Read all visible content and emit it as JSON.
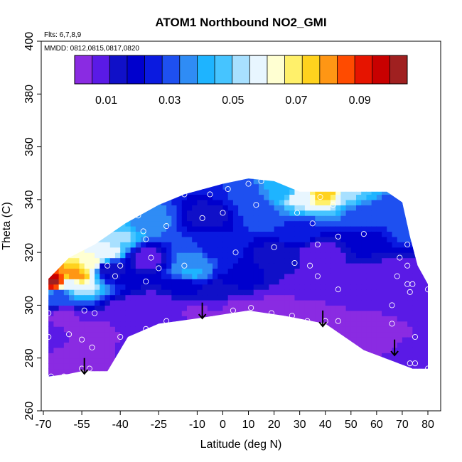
{
  "chart_data": {
    "type": "heatmap",
    "title": "ATOM1 Northbound NO2_GMI",
    "xlabel": "Latitude (deg N)",
    "ylabel": "Theta (C)",
    "annotations": [
      "Flts: 6,7,8,9",
      "MMDD: 0812,0815,0817,0820"
    ],
    "xlim": [
      -70,
      80
    ],
    "ylim": [
      260,
      400
    ],
    "x_ticks": [
      -70,
      -55,
      -40,
      -25,
      -10,
      0,
      10,
      20,
      30,
      40,
      50,
      60,
      70,
      80
    ],
    "x_tick_labels": [
      "-70",
      "-55",
      "-40",
      "-25",
      "-10",
      "0",
      "10",
      "20",
      "30",
      "40",
      "50",
      "60",
      "70",
      "80"
    ],
    "y_ticks": [
      260,
      280,
      300,
      320,
      340,
      360,
      380,
      400
    ],
    "y_tick_labels": [
      "260",
      "280",
      "300",
      "320",
      "340",
      "360",
      "380",
      "400"
    ],
    "colorbar": {
      "range": [
        0,
        0.105
      ],
      "ticks": [
        0.01,
        0.03,
        0.05,
        0.07,
        0.09
      ],
      "tick_labels": [
        "0.01",
        "0.03",
        "0.05",
        "0.07",
        "0.09"
      ],
      "colors": [
        "#8a2be2",
        "#5a1ae6",
        "#1010c8",
        "#0000cd",
        "#0a1ae0",
        "#1e50f0",
        "#2f8cf5",
        "#1eb4ff",
        "#46c4ff",
        "#a8e0ff",
        "#e8f6ff",
        "#ffffd2",
        "#fff06a",
        "#ffd21e",
        "#ff9614",
        "#ff4b00",
        "#e61400",
        "#c80000",
        "#a02020"
      ]
    },
    "domain_outline": [
      [
        -68,
        295
      ],
      [
        -68,
        310
      ],
      [
        -60,
        318
      ],
      [
        -50,
        323
      ],
      [
        -38,
        331
      ],
      [
        -25,
        338
      ],
      [
        -15,
        342
      ],
      [
        0,
        346
      ],
      [
        10,
        348
      ],
      [
        20,
        347
      ],
      [
        30,
        343
      ],
      [
        40,
        343
      ],
      [
        55,
        343
      ],
      [
        64,
        343
      ],
      [
        70,
        339
      ],
      [
        73,
        326
      ],
      [
        76,
        315
      ],
      [
        80,
        308
      ],
      [
        80,
        276
      ],
      [
        74,
        276
      ],
      [
        55,
        283
      ],
      [
        40,
        293
      ],
      [
        24,
        296
      ],
      [
        10,
        298
      ],
      [
        -10,
        295
      ],
      [
        -25,
        293
      ],
      [
        -37,
        288
      ],
      [
        -45,
        275
      ],
      [
        -55,
        275
      ],
      [
        -60,
        274
      ],
      [
        -68,
        273
      ]
    ],
    "field_points": [
      {
        "x": -62,
        "y": 296,
        "v": 0.004
      },
      {
        "x": -50,
        "y": 290,
        "v": 0.004
      },
      {
        "x": -55,
        "y": 280,
        "v": 0.004
      },
      {
        "x": -38,
        "y": 297,
        "v": 0.006
      },
      {
        "x": -25,
        "y": 300,
        "v": 0.007
      },
      {
        "x": -10,
        "y": 298,
        "v": 0.005
      },
      {
        "x": 5,
        "y": 298,
        "v": 0.004
      },
      {
        "x": 20,
        "y": 298,
        "v": 0.004
      },
      {
        "x": 35,
        "y": 296,
        "v": 0.004
      },
      {
        "x": 50,
        "y": 293,
        "v": 0.004
      },
      {
        "x": 65,
        "y": 289,
        "v": 0.005
      },
      {
        "x": 75,
        "y": 284,
        "v": 0.006
      },
      {
        "x": -64,
        "y": 304,
        "v": 0.03
      },
      {
        "x": -60,
        "y": 308,
        "v": 0.058
      },
      {
        "x": -58,
        "y": 312,
        "v": 0.08
      },
      {
        "x": -66,
        "y": 309,
        "v": 0.1
      },
      {
        "x": -52,
        "y": 316,
        "v": 0.066
      },
      {
        "x": -46,
        "y": 320,
        "v": 0.06
      },
      {
        "x": -40,
        "y": 326,
        "v": 0.05
      },
      {
        "x": -30,
        "y": 332,
        "v": 0.036
      },
      {
        "x": -44,
        "y": 314,
        "v": 0.012
      },
      {
        "x": -30,
        "y": 318,
        "v": 0.008
      },
      {
        "x": -12,
        "y": 318,
        "v": 0.034
      },
      {
        "x": -12,
        "y": 313,
        "v": 0.04
      },
      {
        "x": -5,
        "y": 322,
        "v": 0.026
      },
      {
        "x": 5,
        "y": 312,
        "v": 0.022
      },
      {
        "x": -15,
        "y": 307,
        "v": 0.018
      },
      {
        "x": -5,
        "y": 334,
        "v": 0.014
      },
      {
        "x": 8,
        "y": 340,
        "v": 0.028
      },
      {
        "x": 15,
        "y": 335,
        "v": 0.03
      },
      {
        "x": 25,
        "y": 344,
        "v": 0.04
      },
      {
        "x": 30,
        "y": 328,
        "v": 0.026
      },
      {
        "x": 22,
        "y": 318,
        "v": 0.012
      },
      {
        "x": 38,
        "y": 320,
        "v": 0.006
      },
      {
        "x": 38,
        "y": 308,
        "v": 0.006
      },
      {
        "x": 30,
        "y": 342,
        "v": 0.06
      },
      {
        "x": 40,
        "y": 343,
        "v": 0.075
      },
      {
        "x": 50,
        "y": 342,
        "v": 0.05
      },
      {
        "x": 55,
        "y": 335,
        "v": 0.03
      },
      {
        "x": 65,
        "y": 336,
        "v": 0.03
      },
      {
        "x": 72,
        "y": 330,
        "v": 0.03
      },
      {
        "x": 55,
        "y": 325,
        "v": 0.02
      },
      {
        "x": 62,
        "y": 312,
        "v": 0.01
      },
      {
        "x": 72,
        "y": 310,
        "v": 0.008
      },
      {
        "x": 78,
        "y": 300,
        "v": 0.006
      },
      {
        "x": 50,
        "y": 305,
        "v": 0.007
      },
      {
        "x": -2,
        "y": 305,
        "v": 0.012
      }
    ],
    "observations": [
      {
        "x": -68,
        "y": 297
      },
      {
        "x": -68,
        "y": 288
      },
      {
        "x": -60,
        "y": 289
      },
      {
        "x": -62,
        "y": 273
      },
      {
        "x": -67,
        "y": 273
      },
      {
        "x": -54,
        "y": 298
      },
      {
        "x": -50,
        "y": 297
      },
      {
        "x": -55,
        "y": 287
      },
      {
        "x": -52,
        "y": 276
      },
      {
        "x": -55,
        "y": 276
      },
      {
        "x": -51,
        "y": 284
      },
      {
        "x": -40,
        "y": 288
      },
      {
        "x": -30,
        "y": 291
      },
      {
        "x": -22,
        "y": 294
      },
      {
        "x": -45,
        "y": 315
      },
      {
        "x": -40,
        "y": 315
      },
      {
        "x": -42,
        "y": 311
      },
      {
        "x": -30,
        "y": 309
      },
      {
        "x": -28,
        "y": 318
      },
      {
        "x": -25,
        "y": 314
      },
      {
        "x": -22,
        "y": 330
      },
      {
        "x": -30,
        "y": 325
      },
      {
        "x": -31,
        "y": 328
      },
      {
        "x": -33,
        "y": 334
      },
      {
        "x": -25,
        "y": 340
      },
      {
        "x": -15,
        "y": 342
      },
      {
        "x": -8,
        "y": 333
      },
      {
        "x": -5,
        "y": 342
      },
      {
        "x": 0,
        "y": 335
      },
      {
        "x": 2,
        "y": 344
      },
      {
        "x": 10,
        "y": 346
      },
      {
        "x": 15,
        "y": 347
      },
      {
        "x": 13,
        "y": 338
      },
      {
        "x": 20,
        "y": 322
      },
      {
        "x": 5,
        "y": 320
      },
      {
        "x": -15,
        "y": 315
      },
      {
        "x": 4,
        "y": 298
      },
      {
        "x": 11,
        "y": 299
      },
      {
        "x": 19,
        "y": 297
      },
      {
        "x": 27,
        "y": 296
      },
      {
        "x": 33,
        "y": 294
      },
      {
        "x": 40,
        "y": 294
      },
      {
        "x": 45,
        "y": 294
      },
      {
        "x": 28,
        "y": 316
      },
      {
        "x": 34,
        "y": 315
      },
      {
        "x": 37,
        "y": 311
      },
      {
        "x": 45,
        "y": 306
      },
      {
        "x": 29,
        "y": 335
      },
      {
        "x": 35,
        "y": 331
      },
      {
        "x": 38,
        "y": 341
      },
      {
        "x": 45,
        "y": 326
      },
      {
        "x": 43,
        "y": 338
      },
      {
        "x": 55,
        "y": 327
      },
      {
        "x": 66,
        "y": 300
      },
      {
        "x": 66,
        "y": 293
      },
      {
        "x": 69,
        "y": 318
      },
      {
        "x": 68,
        "y": 311
      },
      {
        "x": 72,
        "y": 315
      },
      {
        "x": 72,
        "y": 308
      },
      {
        "x": 74,
        "y": 308
      },
      {
        "x": 73,
        "y": 305
      },
      {
        "x": 75,
        "y": 288
      },
      {
        "x": 73,
        "y": 278
      },
      {
        "x": 75,
        "y": 278
      },
      {
        "x": 80,
        "y": 276
      },
      {
        "x": 80,
        "y": 306
      },
      {
        "x": 72,
        "y": 342
      },
      {
        "x": 72,
        "y": 323
      },
      {
        "x": 37,
        "y": 323
      }
    ],
    "arrows": [
      {
        "x": -54,
        "y_from": 280,
        "y_to": 274
      },
      {
        "x": -8,
        "y_from": 301,
        "y_to": 295
      },
      {
        "x": 39,
        "y_from": 298,
        "y_to": 292
      },
      {
        "x": 67,
        "y_from": 287,
        "y_to": 281
      }
    ]
  }
}
